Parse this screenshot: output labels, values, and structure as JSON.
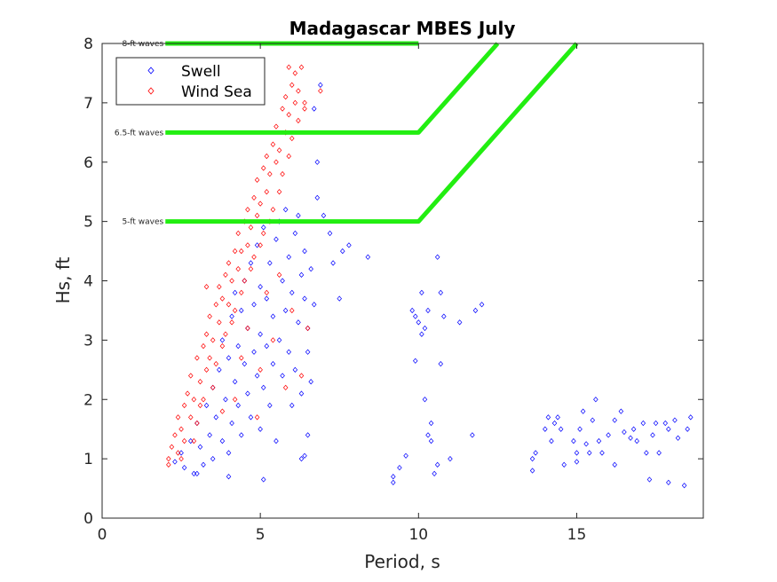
{
  "chart_data": {
    "type": "scatter",
    "title": "Madagascar MBES July",
    "xlabel": "Period, s",
    "ylabel": "Hs, ft",
    "xlim": [
      0,
      19
    ],
    "ylim": [
      0,
      8
    ],
    "xticks": [
      "0",
      "5",
      "10",
      "15"
    ],
    "yticks": [
      "0",
      "1",
      "2",
      "3",
      "4",
      "5",
      "6",
      "7",
      "8"
    ],
    "grid": false,
    "legend_placement": "top-left",
    "marker": "diamond",
    "series": [
      {
        "name": "Swell",
        "color": "#0000ff",
        "points": [
          [
            2.3,
            0.95
          ],
          [
            2.5,
            1.1
          ],
          [
            2.6,
            0.85
          ],
          [
            2.8,
            1.3
          ],
          [
            2.9,
            0.75
          ],
          [
            3.0,
            1.6
          ],
          [
            3.1,
            1.2
          ],
          [
            3.2,
            0.9
          ],
          [
            3.3,
            1.9
          ],
          [
            3.4,
            1.4
          ],
          [
            3.5,
            2.2
          ],
          [
            3.5,
            1.0
          ],
          [
            3.6,
            1.7
          ],
          [
            3.7,
            2.5
          ],
          [
            3.8,
            1.3
          ],
          [
            3.8,
            3.0
          ],
          [
            3.9,
            2.0
          ],
          [
            4.0,
            1.1
          ],
          [
            4.0,
            2.7
          ],
          [
            4.1,
            3.4
          ],
          [
            4.1,
            1.6
          ],
          [
            4.2,
            2.3
          ],
          [
            4.2,
            3.8
          ],
          [
            4.3,
            1.9
          ],
          [
            4.3,
            2.9
          ],
          [
            4.4,
            3.5
          ],
          [
            4.4,
            1.4
          ],
          [
            4.5,
            2.6
          ],
          [
            4.5,
            4.0
          ],
          [
            4.6,
            2.1
          ],
          [
            4.6,
            3.2
          ],
          [
            4.7,
            1.7
          ],
          [
            4.7,
            4.3
          ],
          [
            4.8,
            2.8
          ],
          [
            4.8,
            3.6
          ],
          [
            4.9,
            2.4
          ],
          [
            4.9,
            4.6
          ],
          [
            5.0,
            1.5
          ],
          [
            5.0,
            3.1
          ],
          [
            5.0,
            3.9
          ],
          [
            5.1,
            2.2
          ],
          [
            5.1,
            4.9
          ],
          [
            5.2,
            2.9
          ],
          [
            5.2,
            3.7
          ],
          [
            5.3,
            1.9
          ],
          [
            5.3,
            4.3
          ],
          [
            5.4,
            2.6
          ],
          [
            5.4,
            3.4
          ],
          [
            5.5,
            4.7
          ],
          [
            5.5,
            1.3
          ],
          [
            5.6,
            3.0
          ],
          [
            5.6,
            5.0
          ],
          [
            5.7,
            2.4
          ],
          [
            5.7,
            4.0
          ],
          [
            5.8,
            3.5
          ],
          [
            5.8,
            5.2
          ],
          [
            5.9,
            2.8
          ],
          [
            5.9,
            4.4
          ],
          [
            6.0,
            1.9
          ],
          [
            6.0,
            3.8
          ],
          [
            6.1,
            4.8
          ],
          [
            6.1,
            2.5
          ],
          [
            6.2,
            3.3
          ],
          [
            6.2,
            5.1
          ],
          [
            6.3,
            4.1
          ],
          [
            6.3,
            2.1
          ],
          [
            6.4,
            3.7
          ],
          [
            6.4,
            4.5
          ],
          [
            6.5,
            2.8
          ],
          [
            6.5,
            1.4
          ],
          [
            6.5,
            3.2
          ],
          [
            6.6,
            4.2
          ],
          [
            6.6,
            2.3
          ],
          [
            6.7,
            3.6
          ],
          [
            6.7,
            6.9
          ],
          [
            6.8,
            6.0
          ],
          [
            6.9,
            7.3
          ],
          [
            6.8,
            5.4
          ],
          [
            7.0,
            5.1
          ],
          [
            7.2,
            4.8
          ],
          [
            7.3,
            4.3
          ],
          [
            7.5,
            3.7
          ],
          [
            7.6,
            4.5
          ],
          [
            7.8,
            4.6
          ],
          [
            8.4,
            4.4
          ],
          [
            5.1,
            0.65
          ],
          [
            4.0,
            0.7
          ],
          [
            3.0,
            0.75
          ],
          [
            6.4,
            1.05
          ],
          [
            6.3,
            1.0
          ],
          [
            9.2,
            0.6
          ],
          [
            9.2,
            0.7
          ],
          [
            9.4,
            0.85
          ],
          [
            9.6,
            1.05
          ],
          [
            9.8,
            3.5
          ],
          [
            9.9,
            3.4
          ],
          [
            9.9,
            2.65
          ],
          [
            10.0,
            3.3
          ],
          [
            10.1,
            3.1
          ],
          [
            10.1,
            3.8
          ],
          [
            10.2,
            3.2
          ],
          [
            10.2,
            2.0
          ],
          [
            10.3,
            3.5
          ],
          [
            10.3,
            1.4
          ],
          [
            10.4,
            1.3
          ],
          [
            10.4,
            1.6
          ],
          [
            10.5,
            0.75
          ],
          [
            10.6,
            0.9
          ],
          [
            10.6,
            4.4
          ],
          [
            10.7,
            3.8
          ],
          [
            10.7,
            2.6
          ],
          [
            10.8,
            3.4
          ],
          [
            11.0,
            1.0
          ],
          [
            11.3,
            3.3
          ],
          [
            11.7,
            1.4
          ],
          [
            11.8,
            3.5
          ],
          [
            12.0,
            3.6
          ],
          [
            13.6,
            1.0
          ],
          [
            13.6,
            0.8
          ],
          [
            13.7,
            1.1
          ],
          [
            14.0,
            1.5
          ],
          [
            14.1,
            1.7
          ],
          [
            14.2,
            1.3
          ],
          [
            14.3,
            1.6
          ],
          [
            14.4,
            1.7
          ],
          [
            14.5,
            1.5
          ],
          [
            14.6,
            0.9
          ],
          [
            14.9,
            1.3
          ],
          [
            15.0,
            1.1
          ],
          [
            15.0,
            0.95
          ],
          [
            15.1,
            1.5
          ],
          [
            15.2,
            1.8
          ],
          [
            15.3,
            1.25
          ],
          [
            15.4,
            1.1
          ],
          [
            15.5,
            1.65
          ],
          [
            15.6,
            2.0
          ],
          [
            15.7,
            1.3
          ],
          [
            15.8,
            1.1
          ],
          [
            16.0,
            1.4
          ],
          [
            16.2,
            1.65
          ],
          [
            16.4,
            1.8
          ],
          [
            16.5,
            1.45
          ],
          [
            16.7,
            1.35
          ],
          [
            16.8,
            1.5
          ],
          [
            16.9,
            1.3
          ],
          [
            17.1,
            1.6
          ],
          [
            17.2,
            1.1
          ],
          [
            17.4,
            1.4
          ],
          [
            17.5,
            1.6
          ],
          [
            17.6,
            1.1
          ],
          [
            17.8,
            1.6
          ],
          [
            17.9,
            1.5
          ],
          [
            18.1,
            1.65
          ],
          [
            18.2,
            1.35
          ],
          [
            18.5,
            1.5
          ],
          [
            18.6,
            1.7
          ],
          [
            17.9,
            0.6
          ],
          [
            18.4,
            0.55
          ],
          [
            17.3,
            0.65
          ],
          [
            16.2,
            0.9
          ]
        ]
      },
      {
        "name": "Wind Sea",
        "color": "#ff0000",
        "points": [
          [
            2.1,
            1.0
          ],
          [
            2.1,
            0.9
          ],
          [
            2.2,
            1.2
          ],
          [
            2.3,
            1.4
          ],
          [
            2.4,
            1.1
          ],
          [
            2.4,
            1.7
          ],
          [
            2.5,
            1.5
          ],
          [
            2.6,
            1.9
          ],
          [
            2.6,
            1.3
          ],
          [
            2.7,
            2.1
          ],
          [
            2.8,
            1.7
          ],
          [
            2.8,
            2.4
          ],
          [
            2.9,
            2.0
          ],
          [
            3.0,
            2.7
          ],
          [
            3.0,
            1.6
          ],
          [
            3.1,
            2.3
          ],
          [
            3.2,
            2.9
          ],
          [
            3.2,
            2.0
          ],
          [
            3.3,
            3.1
          ],
          [
            3.3,
            2.5
          ],
          [
            3.4,
            2.7
          ],
          [
            3.4,
            3.4
          ],
          [
            3.5,
            2.2
          ],
          [
            3.5,
            3.0
          ],
          [
            3.6,
            3.6
          ],
          [
            3.6,
            2.6
          ],
          [
            3.7,
            3.3
          ],
          [
            3.7,
            3.9
          ],
          [
            3.8,
            2.9
          ],
          [
            3.8,
            3.7
          ],
          [
            3.9,
            4.1
          ],
          [
            3.9,
            3.1
          ],
          [
            4.0,
            3.6
          ],
          [
            4.0,
            4.3
          ],
          [
            4.1,
            3.3
          ],
          [
            4.1,
            4.0
          ],
          [
            4.2,
            4.5
          ],
          [
            4.2,
            3.5
          ],
          [
            4.3,
            4.2
          ],
          [
            4.3,
            4.8
          ],
          [
            4.4,
            3.8
          ],
          [
            4.4,
            4.5
          ],
          [
            4.5,
            5.0
          ],
          [
            4.5,
            4.0
          ],
          [
            4.6,
            4.6
          ],
          [
            4.6,
            5.2
          ],
          [
            4.7,
            4.2
          ],
          [
            4.7,
            4.9
          ],
          [
            4.8,
            5.4
          ],
          [
            4.8,
            4.4
          ],
          [
            4.9,
            5.1
          ],
          [
            4.9,
            5.7
          ],
          [
            5.0,
            4.6
          ],
          [
            5.0,
            5.3
          ],
          [
            5.1,
            5.9
          ],
          [
            5.1,
            4.8
          ],
          [
            5.2,
            5.5
          ],
          [
            5.2,
            6.1
          ],
          [
            5.3,
            5.0
          ],
          [
            5.3,
            5.8
          ],
          [
            5.4,
            6.3
          ],
          [
            5.4,
            5.2
          ],
          [
            5.5,
            6.0
          ],
          [
            5.5,
            6.6
          ],
          [
            5.6,
            5.5
          ],
          [
            5.6,
            6.2
          ],
          [
            5.7,
            6.9
          ],
          [
            5.7,
            5.8
          ],
          [
            5.8,
            6.5
          ],
          [
            5.8,
            7.1
          ],
          [
            5.9,
            6.1
          ],
          [
            5.9,
            6.8
          ],
          [
            6.0,
            7.3
          ],
          [
            6.0,
            6.4
          ],
          [
            6.1,
            7.0
          ],
          [
            6.1,
            7.5
          ],
          [
            6.2,
            6.7
          ],
          [
            6.2,
            7.2
          ],
          [
            6.3,
            7.6
          ],
          [
            5.9,
            7.6
          ],
          [
            6.4,
            7.0
          ],
          [
            6.4,
            6.9
          ],
          [
            6.9,
            7.2
          ],
          [
            3.3,
            3.9
          ],
          [
            4.6,
            3.2
          ],
          [
            5.0,
            2.5
          ],
          [
            5.4,
            3.0
          ],
          [
            5.8,
            2.2
          ],
          [
            6.0,
            3.5
          ],
          [
            4.2,
            2.0
          ],
          [
            3.8,
            1.8
          ],
          [
            4.9,
            1.7
          ],
          [
            5.2,
            3.8
          ],
          [
            6.3,
            2.4
          ],
          [
            5.6,
            4.1
          ],
          [
            6.5,
            3.2
          ],
          [
            4.4,
            2.7
          ],
          [
            3.1,
            1.9
          ],
          [
            2.9,
            1.3
          ],
          [
            2.5,
            1.0
          ]
        ]
      }
    ],
    "thresholds": [
      {
        "label": "8-ft waves",
        "hs": 8,
        "line": [
          [
            2,
            8
          ],
          [
            10,
            8
          ]
        ]
      },
      {
        "label": "6.5-ft waves",
        "hs": 6.5,
        "line": [
          [
            2,
            6.5
          ],
          [
            10,
            6.5
          ],
          [
            12.5,
            8
          ]
        ]
      },
      {
        "label": "5-ft waves",
        "hs": 5,
        "line": [
          [
            2,
            5
          ],
          [
            10,
            5
          ],
          [
            15,
            8
          ]
        ]
      }
    ],
    "threshold_color": "#22ee11"
  }
}
